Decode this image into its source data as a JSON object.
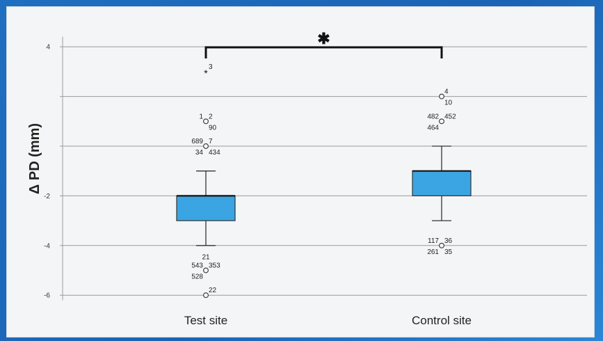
{
  "chart_data": {
    "type": "box",
    "ylabel": "Δ PD (mm)",
    "ylim": [
      -6.2,
      4.4
    ],
    "yticks": [
      4,
      2,
      0,
      -2,
      -4,
      -6
    ],
    "ytick_labels": [
      "4",
      "",
      "",
      "-2",
      "-4",
      "-6"
    ],
    "grid": "horizontal",
    "categories": [
      "Test site",
      "Control site"
    ],
    "boxes": [
      {
        "category": "Test site",
        "q1": -3,
        "median": -2,
        "q3": -2,
        "whisker_low": -4,
        "whisker_high": -1,
        "outliers": [
          {
            "y": 3,
            "marker": "star",
            "labels": [
              {
                "text": "3",
                "side": "right-top"
              }
            ]
          },
          {
            "y": 1,
            "marker": "circle",
            "labels": [
              {
                "text": "1",
                "side": "left-top"
              },
              {
                "text": "2",
                "side": "right-top"
              },
              {
                "text": "90",
                "side": "right-bottom"
              }
            ]
          },
          {
            "y": 0,
            "marker": "circle",
            "labels": [
              {
                "text": "689",
                "side": "left-top"
              },
              {
                "text": "7",
                "side": "right-top"
              },
              {
                "text": "34",
                "side": "left-bottom"
              },
              {
                "text": "434",
                "side": "right-bottom"
              }
            ]
          },
          {
            "y": -5,
            "marker": "circle",
            "labels": [
              {
                "text": "21",
                "side": "top"
              },
              {
                "text": "543",
                "side": "left-top"
              },
              {
                "text": "353",
                "side": "right-top"
              },
              {
                "text": "528",
                "side": "left-bottom"
              }
            ]
          },
          {
            "y": -6,
            "marker": "circle",
            "labels": [
              {
                "text": "22",
                "side": "right-top"
              }
            ]
          }
        ]
      },
      {
        "category": "Control site",
        "q1": -2,
        "median": -1,
        "q3": -1,
        "whisker_low": -3,
        "whisker_high": 0,
        "outliers": [
          {
            "y": 2,
            "marker": "circle",
            "labels": [
              {
                "text": "4",
                "side": "right-top"
              },
              {
                "text": "10",
                "side": "right-bottom"
              }
            ]
          },
          {
            "y": 1,
            "marker": "circle",
            "labels": [
              {
                "text": "482",
                "side": "left-top"
              },
              {
                "text": "452",
                "side": "right-top"
              },
              {
                "text": "464",
                "side": "left-bottom"
              }
            ]
          },
          {
            "y": -4,
            "marker": "circle",
            "labels": [
              {
                "text": "117",
                "side": "left-top"
              },
              {
                "text": "36",
                "side": "right-top"
              },
              {
                "text": "261",
                "side": "left-bottom"
              },
              {
                "text": "35",
                "side": "right-bottom"
              }
            ]
          }
        ]
      }
    ],
    "significance": {
      "between": [
        "Test site",
        "Control site"
      ],
      "symbol": "✱"
    }
  }
}
